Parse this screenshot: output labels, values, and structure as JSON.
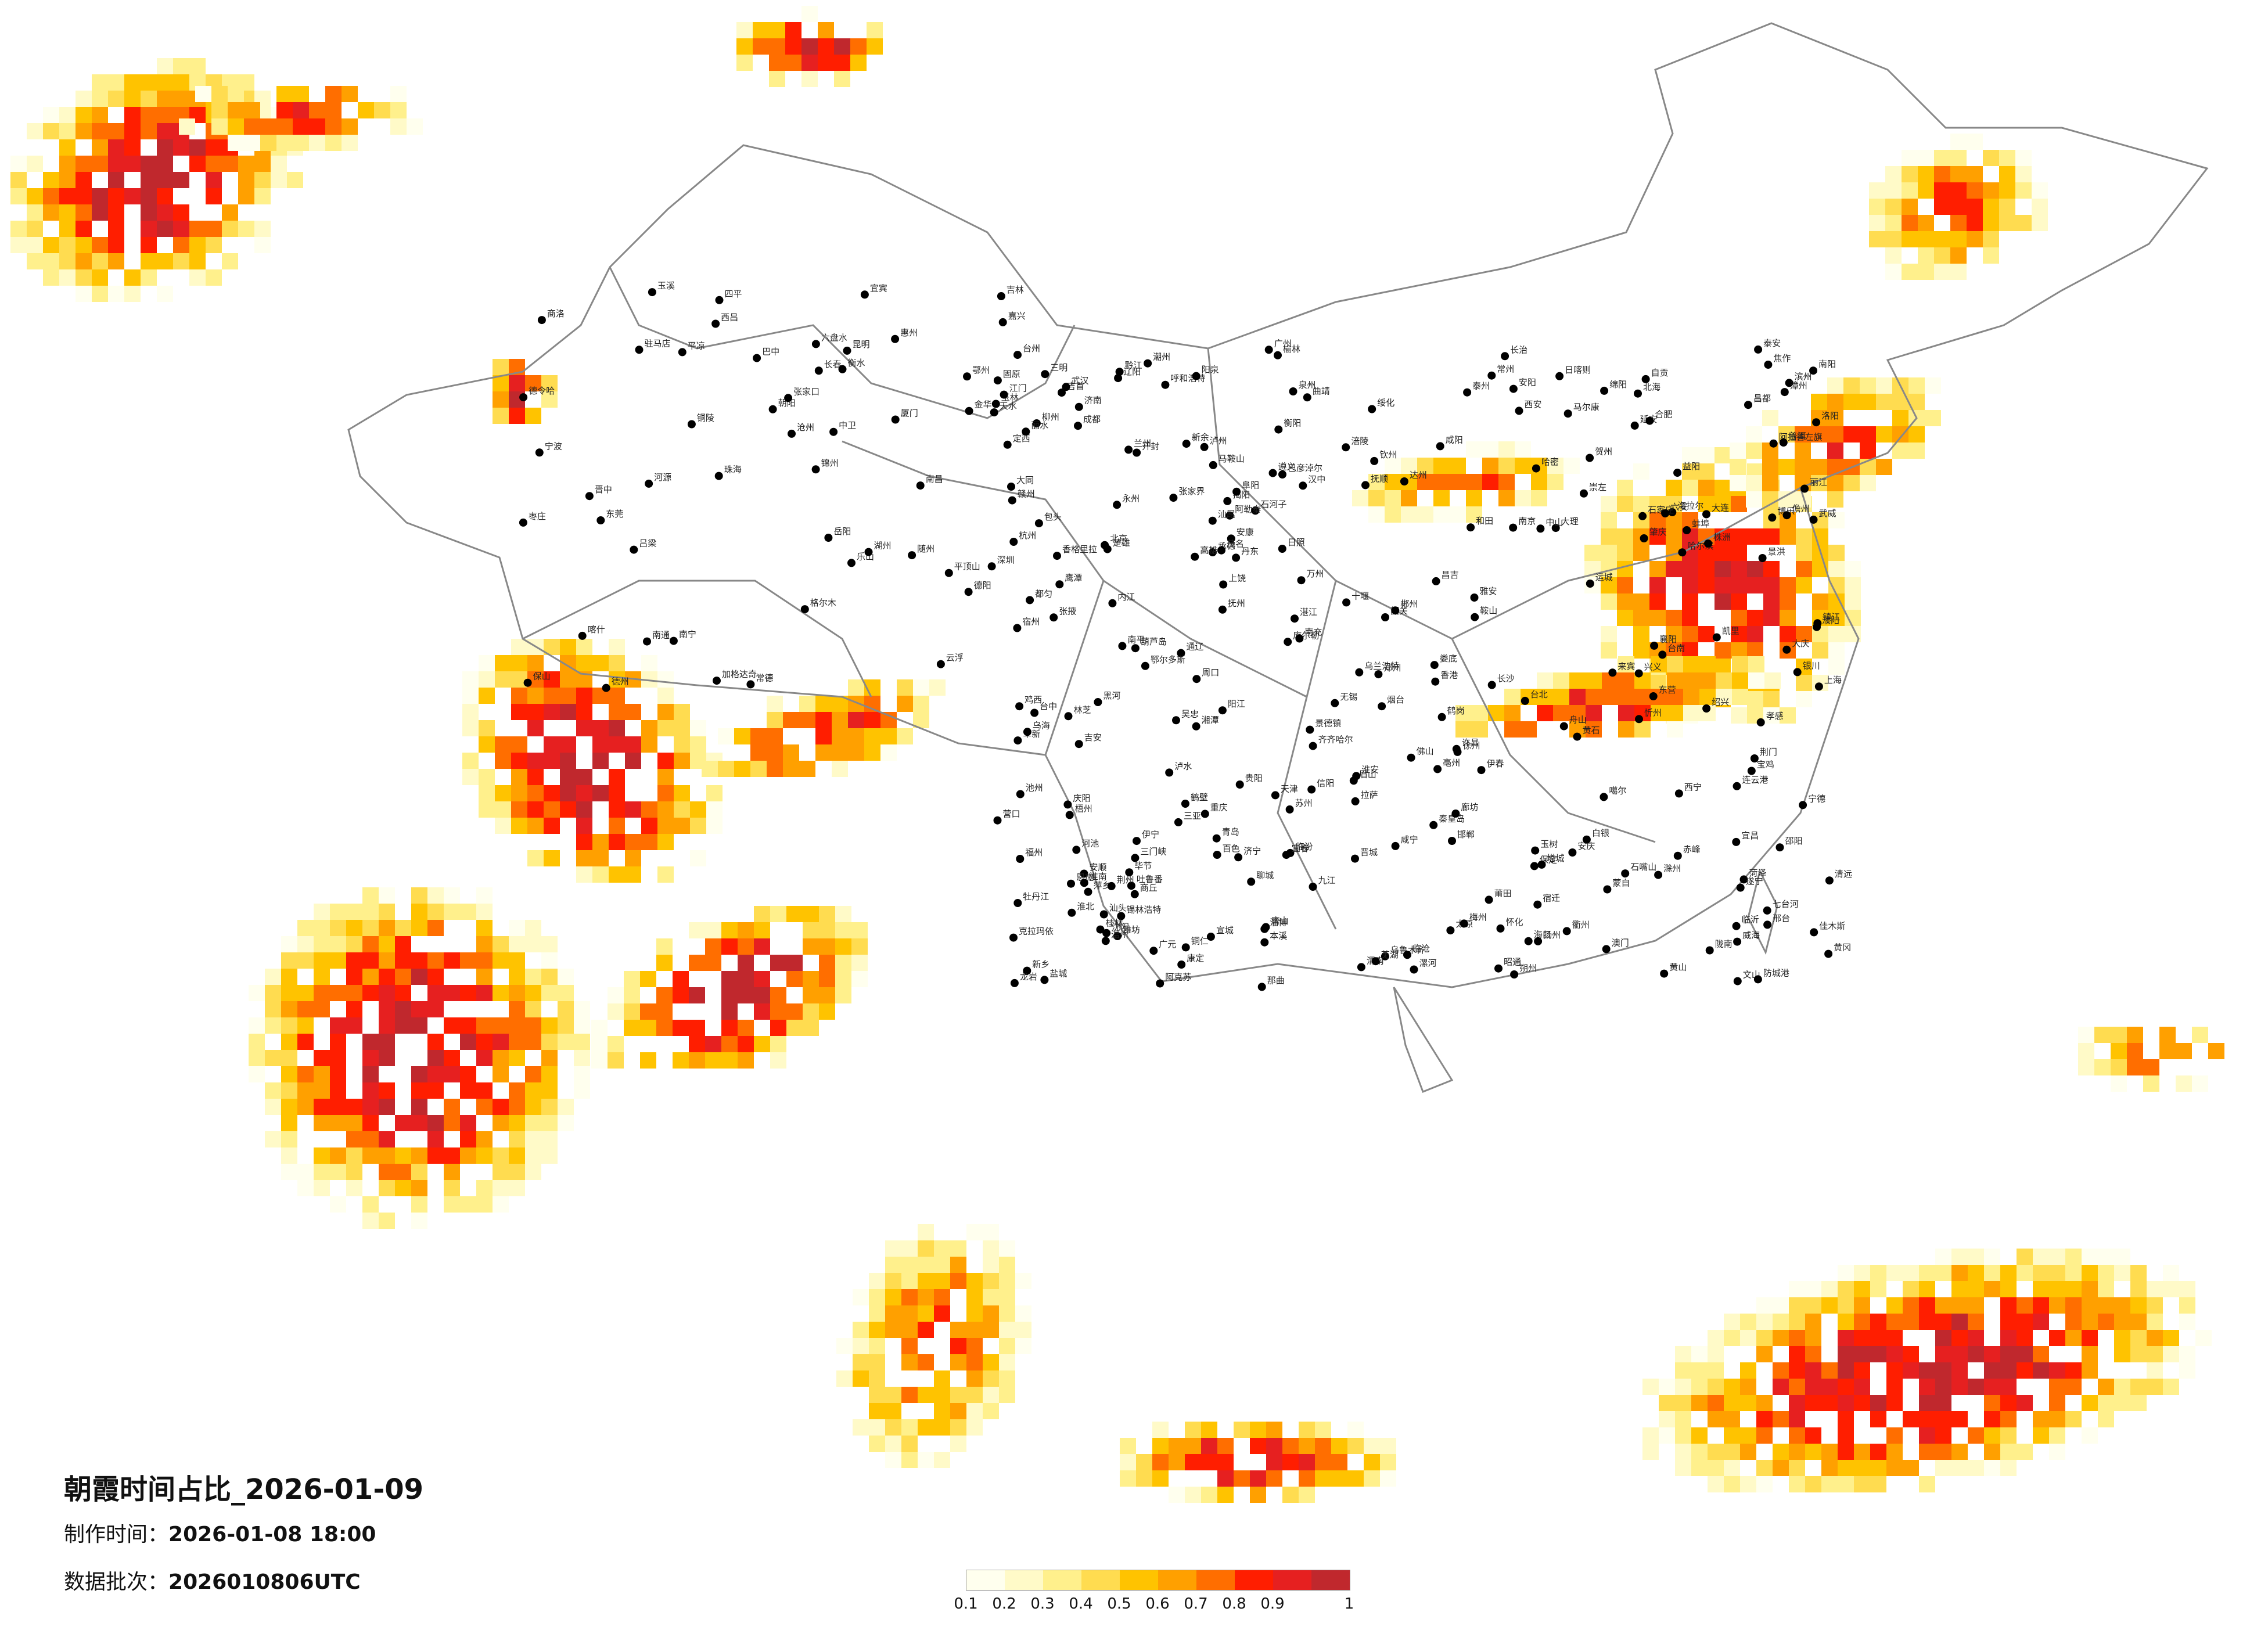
{
  "title": "朝霞时间占比_2026-01-09",
  "made_time_label": "制作时间：",
  "made_time_value": "2026-01-08 18:00",
  "batch_label": "数据批次：",
  "batch_value": "2026010806UTC",
  "legend": {
    "ticks": [
      "0.1",
      "0.2",
      "0.3",
      "0.4",
      "0.5",
      "0.6",
      "0.7",
      "0.8",
      "0.9",
      "1"
    ],
    "colors": [
      "#ffffee",
      "#fffac8",
      "#fff08c",
      "#ffdc50",
      "#ffc300",
      "#ffa000",
      "#ff6e00",
      "#ff1e00",
      "#e62020",
      "#c0282d"
    ]
  },
  "map_data": {
    "cities": [
      "加格达奇",
      "黑河",
      "海拉尔",
      "伊春",
      "鹤岗",
      "佳木斯",
      "齐齐哈尔",
      "大庆",
      "绥化",
      "哈尔滨",
      "七台河",
      "鸡西",
      "牡丹江",
      "乌兰浩特",
      "通辽",
      "长春",
      "四平",
      "吉林",
      "锡林浩特",
      "赤峰",
      "朝阳",
      "阜新",
      "沈阳",
      "抚顺",
      "本溪",
      "辽阳",
      "鞍山",
      "营口",
      "丹东",
      "大连",
      "锦州",
      "葫芦岛",
      "承德",
      "张家口",
      "北京",
      "天津",
      "唐山",
      "秦皇岛",
      "廊坊",
      "保定",
      "石家庄",
      "沧州",
      "衡水",
      "邢台",
      "邯郸",
      "呼和浩特",
      "包头",
      "鄂尔多斯",
      "乌海",
      "巴彦淖尔",
      "阿拉善左旗",
      "大同",
      "朔州",
      "忻州",
      "太原",
      "阳泉",
      "晋中",
      "吕梁",
      "临汾",
      "长治",
      "晋城",
      "运城",
      "济南",
      "德州",
      "聊城",
      "泰安",
      "淄博",
      "滨州",
      "东营",
      "潍坊",
      "烟台",
      "威海",
      "青岛",
      "日照",
      "临沂",
      "枣庄",
      "济宁",
      "菏泽",
      "郑州",
      "开封",
      "洛阳",
      "平顶山",
      "安阳",
      "鹤壁",
      "新乡",
      "焦作",
      "濮阳",
      "许昌",
      "漯河",
      "三门峡",
      "南阳",
      "商丘",
      "信阳",
      "周口",
      "驻马店",
      "西安",
      "宝鸡",
      "咸阳",
      "渭南",
      "延安",
      "汉中",
      "榆林",
      "安康",
      "商洛",
      "银川",
      "石嘴山",
      "吴忠",
      "固原",
      "中卫",
      "兰州",
      "白银",
      "天水",
      "武威",
      "张掖",
      "平凉",
      "庆阳",
      "定西",
      "陇南",
      "西宁",
      "格尔木",
      "德令哈",
      "玉树",
      "乌鲁木齐",
      "昌吉",
      "石河子",
      "克拉玛依",
      "伊宁",
      "博乐",
      "塔城",
      "阿勒泰",
      "库尔勒",
      "吐鲁番",
      "哈密",
      "喀什",
      "和田",
      "阿克苏",
      "拉萨",
      "日喀则",
      "昌都",
      "林芝",
      "那曲",
      "噶尔",
      "成都",
      "绵阳",
      "德阳",
      "南充",
      "宜宾",
      "泸州",
      "乐山",
      "雅安",
      "西昌",
      "达州",
      "广元",
      "遂宁",
      "内江",
      "自贡",
      "眉山",
      "巴中",
      "马尔康",
      "康定",
      "重庆",
      "万州",
      "涪陵",
      "黔江",
      "贵阳",
      "遵义",
      "安顺",
      "六盘水",
      "毕节",
      "都匀",
      "凯里",
      "铜仁",
      "兴义",
      "昆明",
      "曲靖",
      "玉溪",
      "大理",
      "丽江",
      "保山",
      "临沧",
      "普洱",
      "景洪",
      "文山",
      "蒙自",
      "楚雄",
      "昭通",
      "泸水",
      "香格里拉",
      "南宁",
      "柳州",
      "桂林",
      "梧州",
      "北海",
      "钦州",
      "防城港",
      "玉林",
      "百色",
      "河池",
      "贺州",
      "来宾",
      "崇左",
      "广州",
      "深圳",
      "珠海",
      "汕头",
      "韶关",
      "湛江",
      "茂名",
      "肇庆",
      "惠州",
      "梅州",
      "汕尾",
      "河源",
      "阳江",
      "清远",
      "东莞",
      "中山",
      "江门",
      "佛山",
      "潮州",
      "揭阳",
      "云浮",
      "海口",
      "三亚",
      "儋州",
      "福州",
      "厦门",
      "莆田",
      "三明",
      "泉州",
      "漳州",
      "南平",
      "龙岩",
      "宁德",
      "台北",
      "台中",
      "台南",
      "高雄",
      "南昌",
      "景德镇",
      "九江",
      "上饶",
      "鹰潭",
      "抚州",
      "吉安",
      "赣州",
      "萍乡",
      "新余",
      "宜春",
      "长沙",
      "株洲",
      "湘潭",
      "衡阳",
      "邵阳",
      "岳阳",
      "常德",
      "张家界",
      "益阳",
      "郴州",
      "永州",
      "怀化",
      "娄底",
      "吉首",
      "武汉",
      "黄石",
      "十堰",
      "宜昌",
      "襄阳",
      "鄂州",
      "荆门",
      "孝感",
      "荆州",
      "黄冈",
      "咸宁",
      "随州",
      "恩施",
      "合肥",
      "芜湖",
      "蚌埠",
      "淮南",
      "马鞍山",
      "淮北",
      "铜陵",
      "安庆",
      "黄山",
      "滁州",
      "阜阳",
      "宿州",
      "六安",
      "亳州",
      "池州",
      "宣城",
      "南京",
      "无锡",
      "徐州",
      "常州",
      "苏州",
      "南通",
      "连云港",
      "淮安",
      "盐城",
      "扬州",
      "镇江",
      "泰州",
      "宿迁",
      "上海",
      "杭州",
      "宁波",
      "温州",
      "嘉兴",
      "湖州",
      "绍兴",
      "金华",
      "衢州",
      "舟山",
      "台州",
      "丽水",
      "香港",
      "澳门"
    ]
  }
}
